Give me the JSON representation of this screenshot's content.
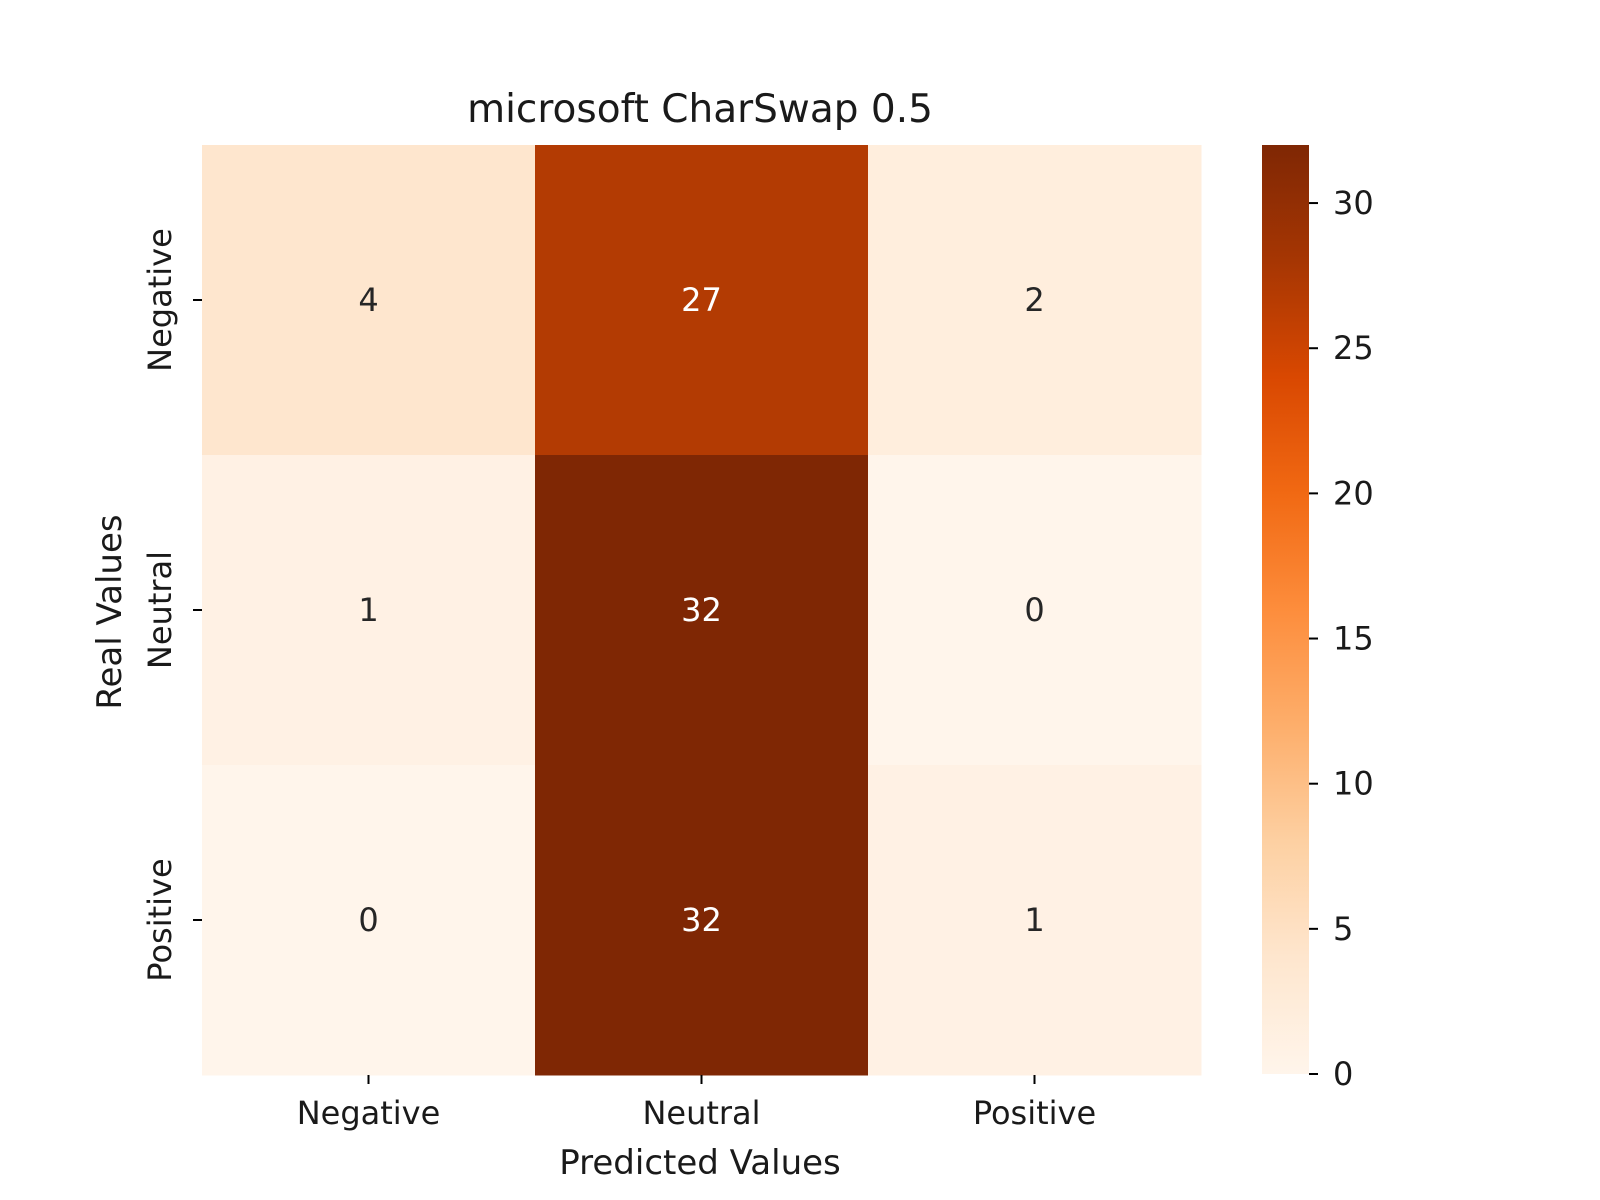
{
  "chart_data": {
    "type": "heatmap",
    "title": "microsoft CharSwap 0.5",
    "xlabel": "Predicted Values",
    "ylabel": "Real Values",
    "x_categories": [
      "Negative",
      "Neutral",
      "Positive"
    ],
    "y_categories": [
      "Negative",
      "Neutral",
      "Positive"
    ],
    "values": [
      [
        4,
        27,
        2
      ],
      [
        1,
        32,
        0
      ],
      [
        0,
        32,
        1
      ]
    ],
    "colormap": "Oranges",
    "colorbar": {
      "range": [
        0,
        32
      ],
      "ticks": [
        0,
        5,
        10,
        15,
        20,
        25,
        30
      ],
      "colors": [
        "#fff5eb",
        "#fee6ce",
        "#fdd0a2",
        "#fdae6b",
        "#fd8d3c",
        "#f16913",
        "#d94801",
        "#a63603",
        "#7f2704"
      ]
    },
    "annotation_colors": {
      "light_cell_text": "#262626",
      "dark_cell_text": "#ffffff"
    }
  }
}
